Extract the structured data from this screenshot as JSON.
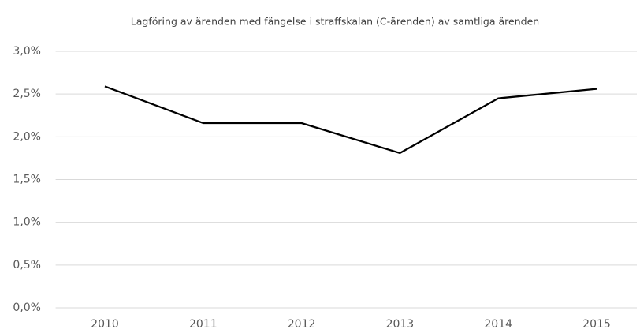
{
  "chart_data": {
    "type": "line",
    "title": "Lagföring av ärenden med fängelse i straffskalan (C-ärenden) av samtliga ärenden",
    "categories": [
      "2010",
      "2011",
      "2012",
      "2013",
      "2014",
      "2015"
    ],
    "series": [
      {
        "name": null,
        "color": "#000000",
        "values": [
          2.59,
          2.16,
          2.16,
          1.81,
          2.45,
          2.56
        ]
      }
    ],
    "ylim": [
      0,
      3
    ],
    "yticks": [
      {
        "value": 0,
        "label": "0,0%"
      },
      {
        "value": 0.5,
        "label": "0,5%"
      },
      {
        "value": 1,
        "label": "1,0%"
      },
      {
        "value": 1.5,
        "label": "1,5%"
      },
      {
        "value": 2,
        "label": "2,0%"
      },
      {
        "value": 2.5,
        "label": "2,5%"
      },
      {
        "value": 3,
        "label": "3,0%"
      }
    ],
    "grid": true
  }
}
